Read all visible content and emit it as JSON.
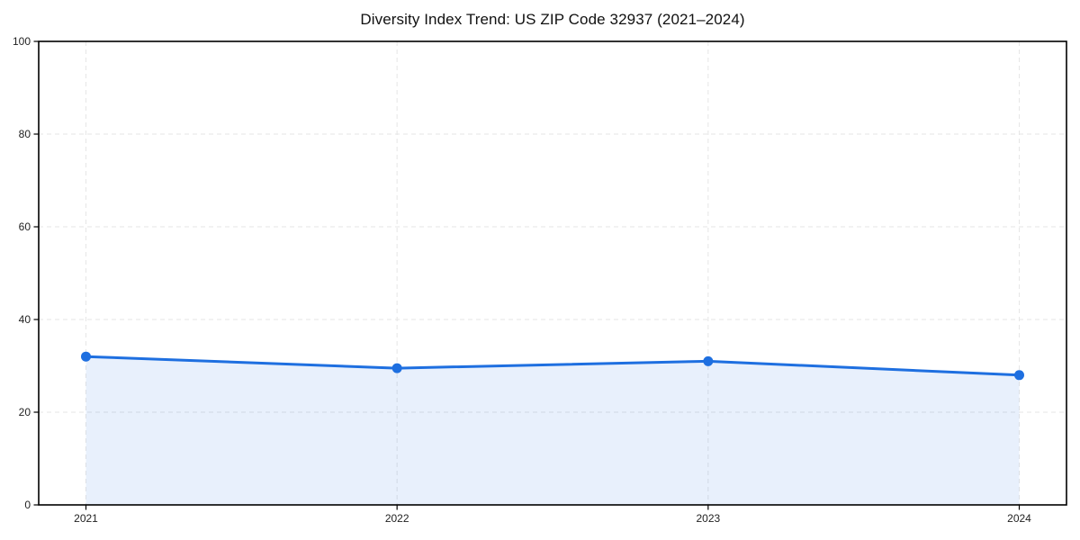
{
  "page": {
    "background": "#ffffff"
  },
  "chart_data": {
    "type": "line",
    "title": "Diversity Index Trend: US ZIP Code 32937 (2021–2024)",
    "categories": [
      "2021",
      "2022",
      "2023",
      "2024"
    ],
    "values": [
      32,
      29.5,
      31,
      28
    ],
    "xlabel": "",
    "ylabel": "",
    "ylim": [
      0,
      100
    ],
    "yticks": [
      0,
      20,
      40,
      60,
      80,
      100
    ],
    "grid": true,
    "grid_style": "dashed",
    "legend": "none",
    "area_fill": true,
    "colors": {
      "line": "#1e6fe0",
      "marker": "#1e6fe0",
      "fill": "#1e6fe0",
      "fill_opacity": 0.1,
      "grid": "#e6e6e6",
      "spine": "#000000",
      "tick_label": "#222222",
      "title": "#111111"
    }
  }
}
